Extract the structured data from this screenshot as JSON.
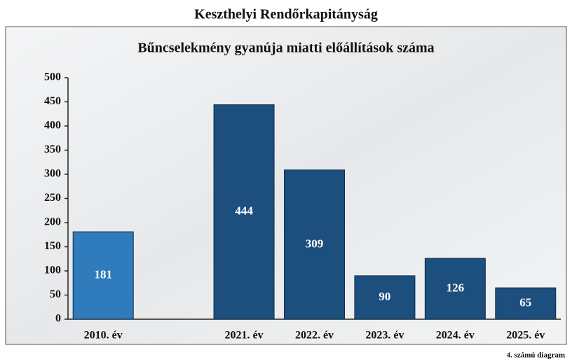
{
  "chart_data": {
    "type": "bar",
    "title": "Keszthelyi Rendőrkapitányság",
    "subtitle": "Bűncselekmény gyanúja miatti előállítások száma",
    "caption": "4. számú diagram",
    "categories": [
      "2010. év",
      null,
      "2021. év",
      "2022. év",
      "2023. év",
      "2024. év",
      "2025. év"
    ],
    "values": [
      181,
      null,
      444,
      309,
      90,
      126,
      65
    ],
    "colors": [
      "#2f7bbb",
      null,
      "#1c4e7e",
      "#1c4e7e",
      "#1c4e7e",
      "#1c4e7e",
      "#1c4e7e"
    ],
    "ylim": [
      0,
      500
    ],
    "yticks": [
      0,
      50,
      100,
      150,
      200,
      250,
      300,
      350,
      400,
      450,
      500
    ],
    "grid": false
  }
}
